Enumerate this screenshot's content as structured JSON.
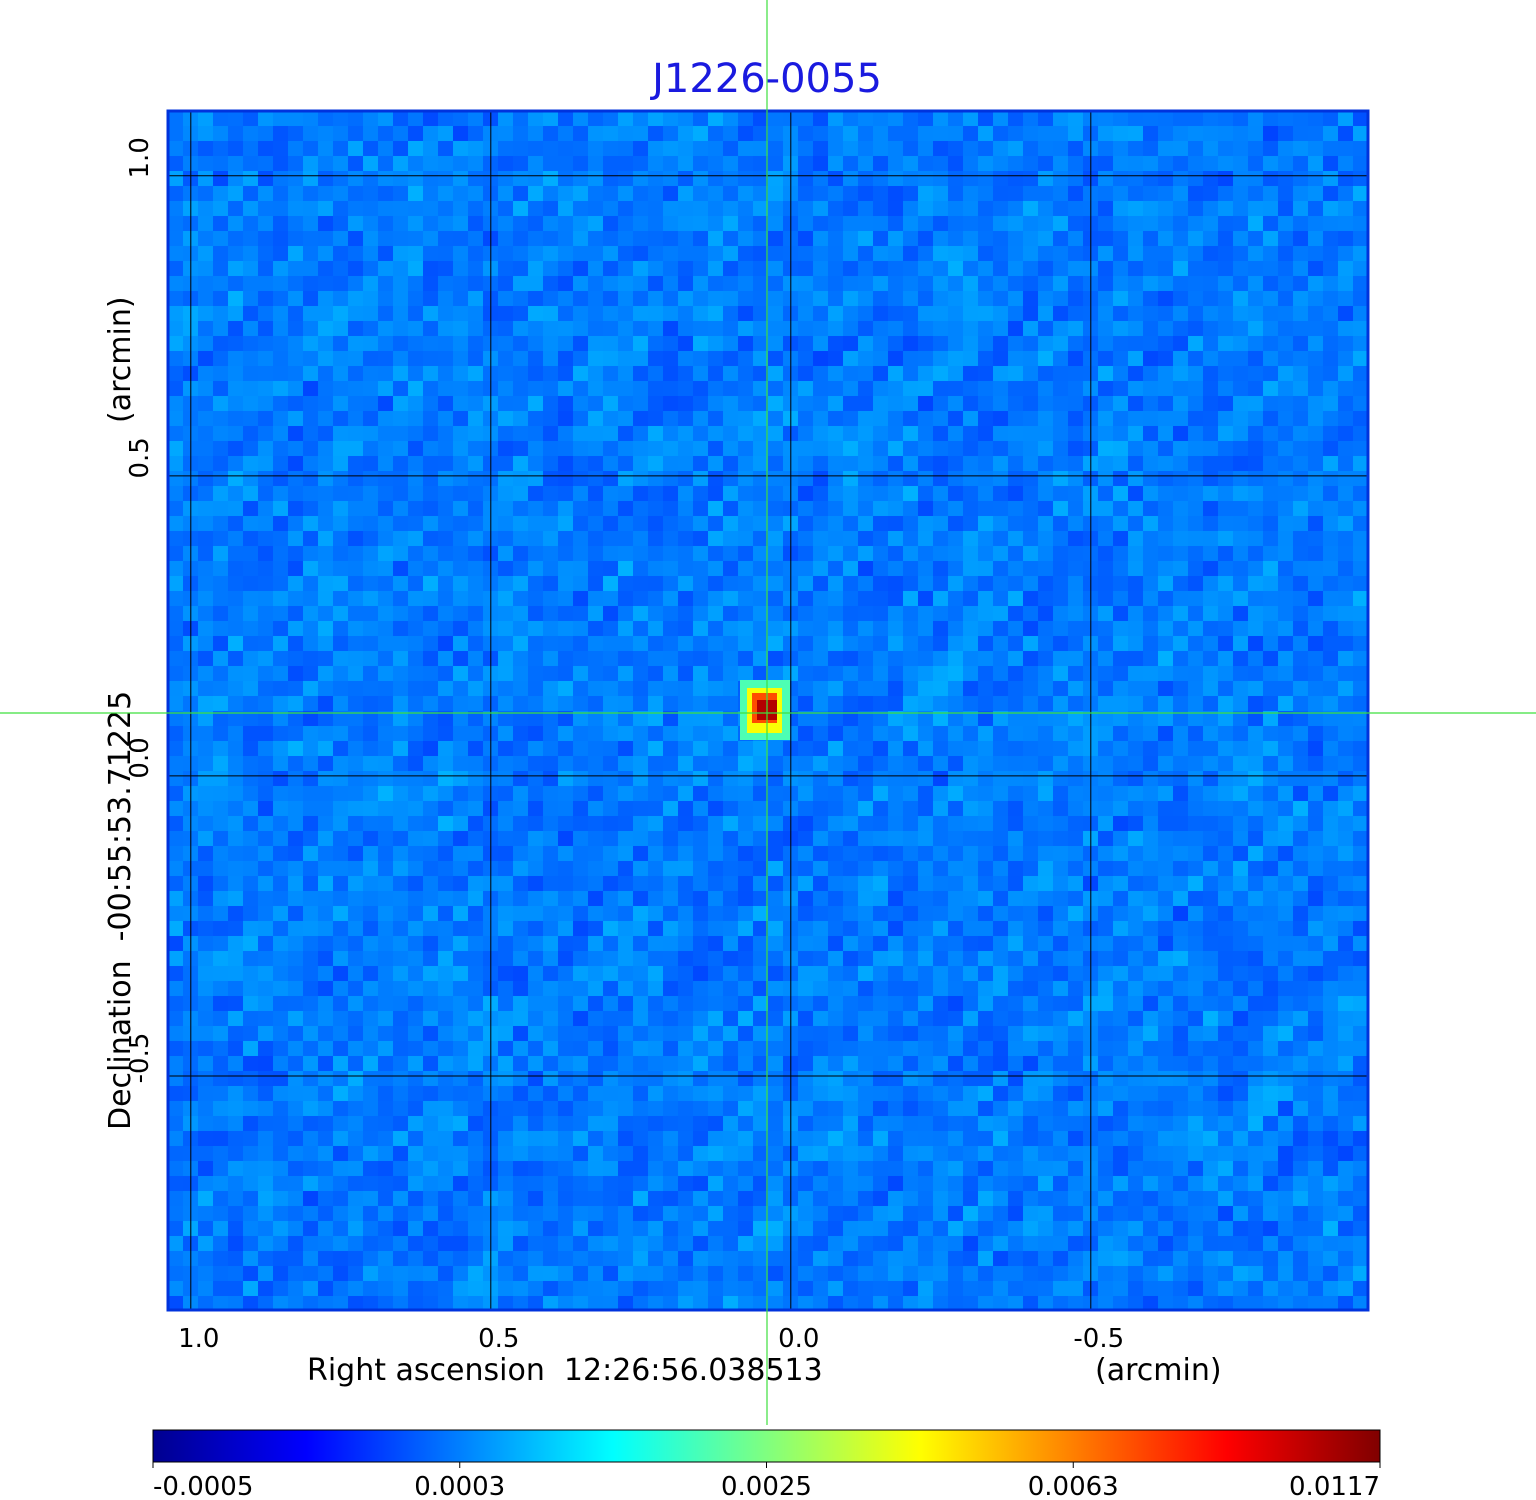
{
  "chart_data": {
    "type": "image",
    "title": "J1226-0055",
    "xlabel": "Right ascension  12:26:56.038513",
    "xunit": "(arcmin)",
    "ylabel": "Declination  -00:55:53.71225",
    "yunit": "(arcmin)",
    "xlim": [
      1.038,
      -0.962
    ],
    "ylim": [
      -0.89,
      1.108
    ],
    "xticks": [
      {
        "value": 1,
        "label": "1.0"
      },
      {
        "value": 0.5,
        "label": "0.5"
      },
      {
        "value": 0,
        "label": "0.0"
      },
      {
        "value": -0.5,
        "label": "-0.5"
      }
    ],
    "yticks": [
      {
        "value": 1,
        "label": "1.0"
      },
      {
        "value": 0.5,
        "label": "0.5"
      },
      {
        "value": 0,
        "label": "0.0"
      },
      {
        "value": -0.5,
        "label": "-0.5"
      }
    ],
    "grid": true,
    "colormap": "jet",
    "colorbar_ticks": [
      -0.0005,
      0.0003,
      0.0025,
      0.0063,
      0.0117
    ]
  }
}
